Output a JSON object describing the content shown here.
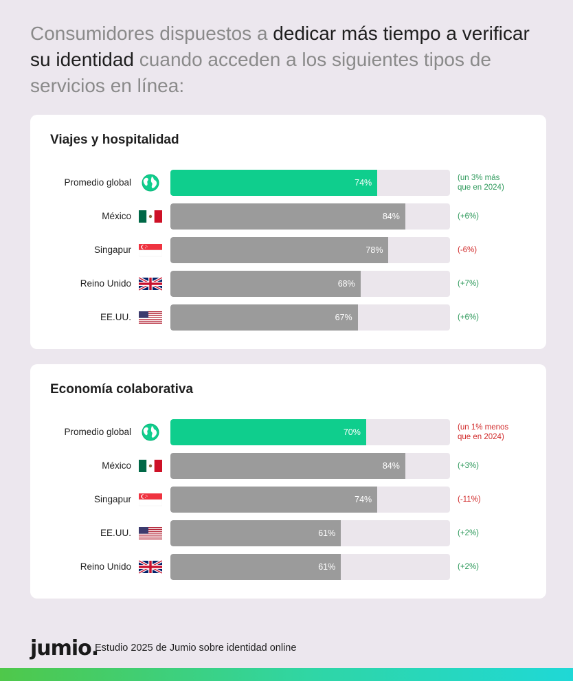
{
  "headline": {
    "part1": "Consumidores dispuestos a ",
    "highlight": "dedicar más tiempo a verificar su identidad",
    "part2": " cuando acceden a los siguientes tipos de servicios en línea:"
  },
  "colors": {
    "background": "#ece7ee",
    "global_bar": "#0fce8d",
    "country_bar": "#9b9b9b",
    "track": "#ebe6ec",
    "positive": "#2f9a5c",
    "negative": "#d12b2b"
  },
  "chart_data": [
    {
      "type": "bar",
      "orientation": "horizontal",
      "title": "Viajes y hospitalidad",
      "xlim": [
        0,
        100
      ],
      "rows": [
        {
          "label": "Promedio global",
          "icon": "globe-icon",
          "value": 74,
          "value_label": "74%",
          "change": "(un 3% más\nque en 2024)",
          "direction": "pos",
          "global": true
        },
        {
          "label": "México",
          "icon": "flag-mexico-icon",
          "value": 84,
          "value_label": "84%",
          "change": "(+6%)",
          "direction": "pos",
          "global": false
        },
        {
          "label": "Singapur",
          "icon": "flag-singapore-icon",
          "value": 78,
          "value_label": "78%",
          "change": "(-6%)",
          "direction": "neg",
          "global": false
        },
        {
          "label": "Reino Unido",
          "icon": "flag-uk-icon",
          "value": 68,
          "value_label": "68%",
          "change": "(+7%)",
          "direction": "pos",
          "global": false
        },
        {
          "label": "EE.UU.",
          "icon": "flag-usa-icon",
          "value": 67,
          "value_label": "67%",
          "change": "(+6%)",
          "direction": "pos",
          "global": false
        }
      ]
    },
    {
      "type": "bar",
      "orientation": "horizontal",
      "title": "Economía colaborativa",
      "xlim": [
        0,
        100
      ],
      "rows": [
        {
          "label": "Promedio global",
          "icon": "globe-icon",
          "value": 70,
          "value_label": "70%",
          "change": "(un 1% menos\nque en 2024)",
          "direction": "neg",
          "global": true
        },
        {
          "label": "México",
          "icon": "flag-mexico-icon",
          "value": 84,
          "value_label": "84%",
          "change": "(+3%)",
          "direction": "pos",
          "global": false
        },
        {
          "label": "Singapur",
          "icon": "flag-singapore-icon",
          "value": 74,
          "value_label": "74%",
          "change": "(-11%)",
          "direction": "neg",
          "global": false
        },
        {
          "label": "EE.UU.",
          "icon": "flag-usa-icon",
          "value": 61,
          "value_label": "61%",
          "change": "(+2%)",
          "direction": "pos",
          "global": false
        },
        {
          "label": "Reino Unido",
          "icon": "flag-uk-icon",
          "value": 61,
          "value_label": "61%",
          "change": "(+2%)",
          "direction": "pos",
          "global": false
        }
      ]
    }
  ],
  "footer": {
    "logo": "jumio.",
    "text": "Estudio 2025 de Jumio sobre identidad online"
  }
}
